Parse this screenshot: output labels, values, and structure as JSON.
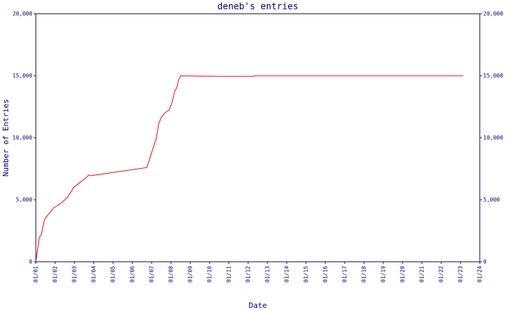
{
  "chart_data": {
    "type": "line",
    "title": "deneb's entries",
    "x_label": "Date",
    "y_label": "Number of Entries",
    "xlim": [
      1,
      24
    ],
    "xticks": [
      {
        "value": 1,
        "label": "01/01"
      },
      {
        "value": 2,
        "label": "01/02"
      },
      {
        "value": 3,
        "label": "01/03"
      },
      {
        "value": 4,
        "label": "01/04"
      },
      {
        "value": 5,
        "label": "01/05"
      },
      {
        "value": 6,
        "label": "01/06"
      },
      {
        "value": 7,
        "label": "01/07"
      },
      {
        "value": 8,
        "label": "01/08"
      },
      {
        "value": 9,
        "label": "01/09"
      },
      {
        "value": 10,
        "label": "01/10"
      },
      {
        "value": 11,
        "label": "01/11"
      },
      {
        "value": 12,
        "label": "01/12"
      },
      {
        "value": 13,
        "label": "01/13"
      },
      {
        "value": 14,
        "label": "01/14"
      },
      {
        "value": 15,
        "label": "01/15"
      },
      {
        "value": 16,
        "label": "01/16"
      },
      {
        "value": 17,
        "label": "01/17"
      },
      {
        "value": 18,
        "label": "01/18"
      },
      {
        "value": 19,
        "label": "01/19"
      },
      {
        "value": 20,
        "label": "01/20"
      },
      {
        "value": 21,
        "label": "01/21"
      },
      {
        "value": 22,
        "label": "01/22"
      },
      {
        "value": 23,
        "label": "01/23"
      },
      {
        "value": 24,
        "label": "01/24"
      }
    ],
    "ylim": [
      0,
      20000
    ],
    "yticks": [
      0,
      {
        "value": 5000,
        "label": "5,000"
      },
      {
        "value": 10000,
        "label": "10,000"
      },
      {
        "value": 15000,
        "label": "15,000"
      },
      {
        "value": 20000,
        "label": "20,000"
      }
    ],
    "x": [
      1,
      1.04,
      1.18,
      1.29,
      1.36,
      1.46,
      1.64,
      1.93,
      2.29,
      2.61,
      2.79,
      2.96,
      3.25,
      3.54,
      3.75,
      3.89,
      6.75,
      6.93,
      7.07,
      7.25,
      7.36,
      7.5,
      7.71,
      7.89,
      8.07,
      8.18,
      8.32,
      8.39,
      8.5,
      10.43,
      12.21,
      12.36,
      23.14
    ],
    "series": [
      {
        "name": "deneb",
        "color": "#ff0000",
        "values": [
          0,
          450,
          1950,
          2200,
          2800,
          3450,
          3800,
          4350,
          4700,
          5150,
          5550,
          6000,
          6350,
          6700,
          7000,
          6950,
          7600,
          8450,
          9150,
          10000,
          11100,
          11650,
          12050,
          12200,
          12900,
          13700,
          14100,
          14650,
          15000,
          14950,
          14950,
          15000,
          15000
        ]
      }
    ]
  }
}
